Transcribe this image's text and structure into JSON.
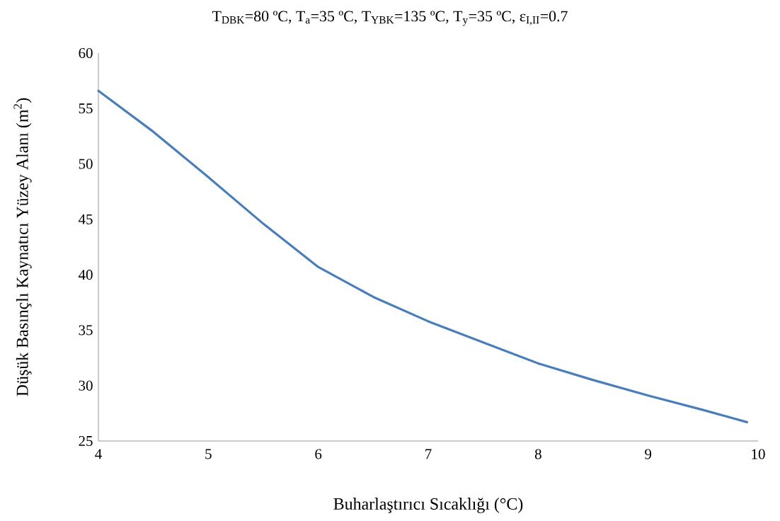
{
  "chart_data": {
    "type": "line",
    "title": "T$_{DBK}$=80 ºC, T$_{a}$=35 ºC, T$_{YBK}$=135 ºC, T$_{y}$=35 ºC, ε$_{I,II}$=0.7",
    "xlabel": "Buharlaştırıcı Sıcaklığı (°C)",
    "ylabel": "Düşük Basınçlı Kaynatıcı Yüzey Alanı (m$^{2}$)",
    "x": [
      4,
      4.5,
      5,
      5.5,
      6,
      6.5,
      7,
      7.5,
      8,
      8.5,
      9,
      9.5,
      9.9
    ],
    "values": [
      56.6,
      52.9,
      48.8,
      44.6,
      40.7,
      38.0,
      35.8,
      33.9,
      32.0,
      30.5,
      29.1,
      27.8,
      26.7
    ],
    "color": "#4a7ebb",
    "xlim": [
      4,
      10
    ],
    "ylim": [
      25,
      60
    ],
    "xticks": [
      4,
      5,
      6,
      7,
      8,
      9,
      10
    ],
    "yticks": [
      25,
      30,
      35,
      40,
      45,
      50,
      55,
      60
    ]
  }
}
